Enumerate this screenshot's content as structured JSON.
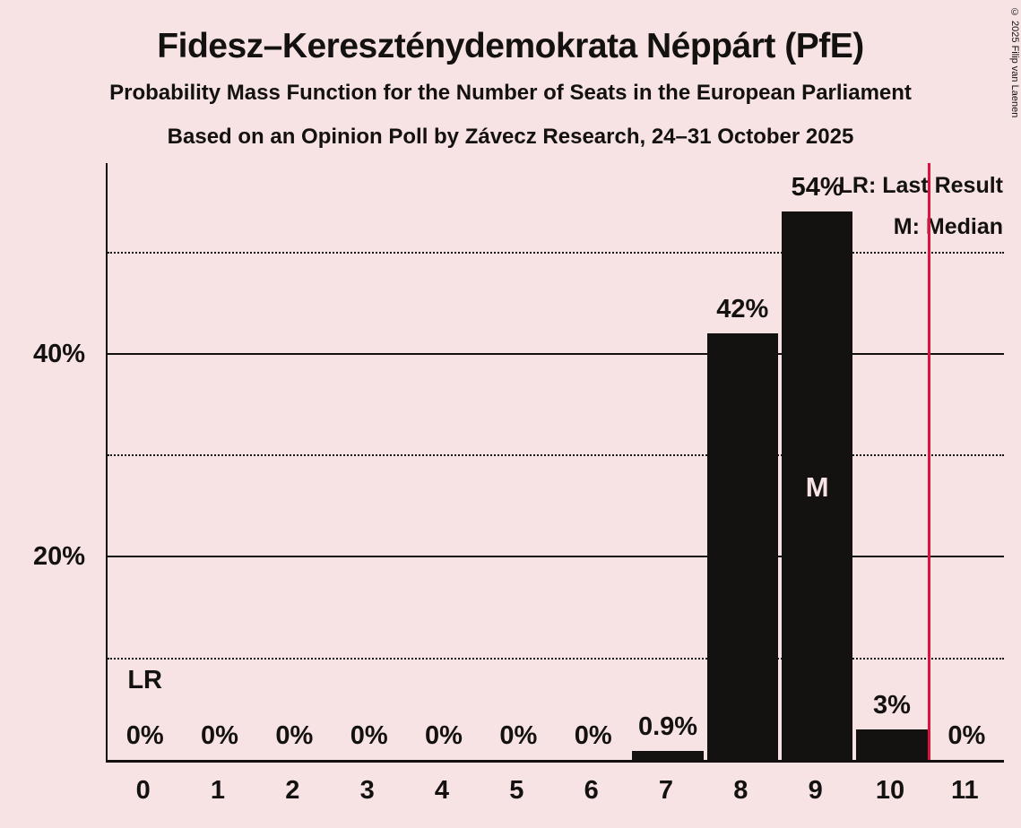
{
  "title": "Fidesz–Kereszténydemokrata Néppárt (PfE)",
  "subtitle1": "Probability Mass Function for the Number of Seats in the European Parliament",
  "subtitle2": "Based on an Opinion Poll by Závecz Research, 24–31 October 2025",
  "copyright": "© 2025 Filip van Laenen",
  "legend": {
    "lr": "LR: Last Result",
    "m": "M: Median"
  },
  "colors": {
    "background": "#F7E2E4",
    "bar": "#131210",
    "text": "#131210",
    "last_result_line": "#DC143C",
    "median_text": "#F7E2E4"
  },
  "chart_data": {
    "type": "bar",
    "title": "Fidesz–Kereszténydemokrata Néppárt (PfE)",
    "categories": [
      "0",
      "1",
      "2",
      "3",
      "4",
      "5",
      "6",
      "7",
      "8",
      "9",
      "10",
      "11"
    ],
    "values": [
      0,
      0,
      0,
      0,
      0,
      0,
      0,
      0.9,
      42,
      54,
      3,
      0
    ],
    "bar_labels": [
      "0%",
      "0%",
      "0%",
      "0%",
      "0%",
      "0%",
      "0%",
      "0.9%",
      "42%",
      "54%",
      "3%",
      "0%"
    ],
    "xlabel": "",
    "ylabel": "",
    "ylim": [
      0,
      58.8
    ],
    "yticks": [
      {
        "value": 20,
        "label": "20%"
      },
      {
        "value": 40,
        "label": "40%"
      }
    ],
    "gridlines_solid": [
      20,
      40
    ],
    "gridlines_dotted": [
      10,
      30,
      50
    ],
    "legend_position": "top-right",
    "last_result_line_x": 10.5,
    "annotations": {
      "lr_text": "LR",
      "lr_above_category": "0",
      "median_text": "M",
      "median_category": "9"
    }
  }
}
